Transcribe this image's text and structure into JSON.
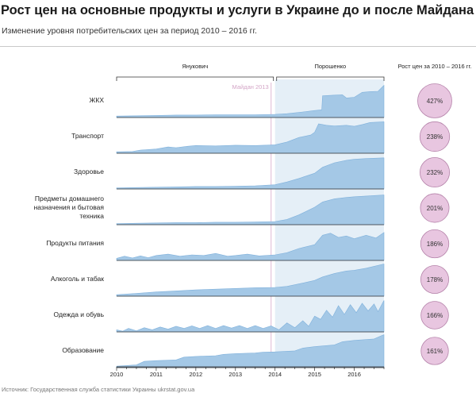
{
  "header": {
    "title": "Рост цен на основные продукты и услуги в Украине до и после Майдана",
    "subtitle": "Изменение уровня потребительских цен за период 2010 – 2016 гг."
  },
  "source": "Источник: Государственная служба статистики Украины ukrstat.gov.ua",
  "colors": {
    "area": "#a4c8e6",
    "area_stroke": "#7fb1dc",
    "shade": "#e5eff7",
    "bubble_fill": "#e8c6e0",
    "bubble_stroke": "#b583aa",
    "maidan_line": "#e0b9d4",
    "axis": "#333333"
  },
  "periods": [
    {
      "name": "Янукович",
      "from": 2010.0,
      "to": 2014.0
    },
    {
      "name": "Порошенко",
      "from": 2014.0,
      "to": 2016.75
    }
  ],
  "event": {
    "label": "Майдан 2013",
    "x": 2013.9
  },
  "growth_header": "Рост цен за 2010 – 2016 гг.",
  "chart_data": {
    "type": "area",
    "title": "Рост цен на основные продукты и услуги в Украине до и после Майдана",
    "subtitle": "Изменение уровня потребительских цен за период 2010 – 2016 гг.",
    "xlabel": "",
    "ylabel": "",
    "x_ticks": [
      "2010",
      "2011",
      "2012",
      "2013",
      "2014",
      "2015",
      "2016"
    ],
    "xlim": [
      2010,
      2016.75
    ],
    "ylim": [
      0,
      1
    ],
    "series": [
      {
        "name": "ЖКХ",
        "label_lines": [
          "ЖКХ"
        ],
        "growth_label": "427%",
        "growth": 427,
        "points": [
          [
            2010.0,
            0.04
          ],
          [
            2010.5,
            0.05
          ],
          [
            2011.0,
            0.06
          ],
          [
            2011.5,
            0.07
          ],
          [
            2012.0,
            0.07
          ],
          [
            2012.5,
            0.08
          ],
          [
            2013.0,
            0.08
          ],
          [
            2013.5,
            0.08
          ],
          [
            2014.0,
            0.09
          ],
          [
            2014.3,
            0.11
          ],
          [
            2014.7,
            0.16
          ],
          [
            2015.0,
            0.2
          ],
          [
            2015.18,
            0.22
          ],
          [
            2015.2,
            0.62
          ],
          [
            2015.5,
            0.64
          ],
          [
            2015.7,
            0.65
          ],
          [
            2015.8,
            0.56
          ],
          [
            2016.0,
            0.58
          ],
          [
            2016.2,
            0.72
          ],
          [
            2016.4,
            0.74
          ],
          [
            2016.6,
            0.75
          ],
          [
            2016.75,
            0.92
          ]
        ]
      },
      {
        "name": "Транспорт",
        "label_lines": [
          "Транспорт"
        ],
        "growth_label": "238%",
        "growth": 238,
        "points": [
          [
            2010.0,
            0.04
          ],
          [
            2010.4,
            0.05
          ],
          [
            2010.6,
            0.09
          ],
          [
            2011.0,
            0.12
          ],
          [
            2011.3,
            0.18
          ],
          [
            2011.5,
            0.16
          ],
          [
            2011.8,
            0.2
          ],
          [
            2012.0,
            0.22
          ],
          [
            2012.5,
            0.21
          ],
          [
            2013.0,
            0.23
          ],
          [
            2013.5,
            0.22
          ],
          [
            2014.0,
            0.24
          ],
          [
            2014.3,
            0.32
          ],
          [
            2014.6,
            0.45
          ],
          [
            2014.9,
            0.52
          ],
          [
            2015.0,
            0.6
          ],
          [
            2015.1,
            0.84
          ],
          [
            2015.3,
            0.8
          ],
          [
            2015.5,
            0.78
          ],
          [
            2015.8,
            0.8
          ],
          [
            2016.0,
            0.77
          ],
          [
            2016.2,
            0.82
          ],
          [
            2016.4,
            0.88
          ],
          [
            2016.75,
            0.9
          ]
        ]
      },
      {
        "name": "Здоровье",
        "label_lines": [
          "Здоровье"
        ],
        "growth_label": "232%",
        "growth": 232,
        "points": [
          [
            2010.0,
            0.03
          ],
          [
            2010.5,
            0.04
          ],
          [
            2011.0,
            0.05
          ],
          [
            2011.5,
            0.06
          ],
          [
            2012.0,
            0.07
          ],
          [
            2012.5,
            0.07
          ],
          [
            2013.0,
            0.08
          ],
          [
            2013.5,
            0.09
          ],
          [
            2014.0,
            0.12
          ],
          [
            2014.3,
            0.2
          ],
          [
            2014.6,
            0.3
          ],
          [
            2015.0,
            0.45
          ],
          [
            2015.2,
            0.62
          ],
          [
            2015.5,
            0.75
          ],
          [
            2015.8,
            0.82
          ],
          [
            2016.0,
            0.85
          ],
          [
            2016.3,
            0.87
          ],
          [
            2016.75,
            0.89
          ]
        ]
      },
      {
        "name": "Предметы домашнего назначения и бытовая техника",
        "label_lines": [
          "Предметы домашнего",
          "назначения и бытовая",
          "техника"
        ],
        "growth_label": "201%",
        "growth": 201,
        "points": [
          [
            2010.0,
            0.03
          ],
          [
            2010.5,
            0.04
          ],
          [
            2011.0,
            0.05
          ],
          [
            2011.5,
            0.06
          ],
          [
            2012.0,
            0.06
          ],
          [
            2012.5,
            0.07
          ],
          [
            2013.0,
            0.07
          ],
          [
            2013.5,
            0.08
          ],
          [
            2014.0,
            0.09
          ],
          [
            2014.3,
            0.15
          ],
          [
            2014.6,
            0.28
          ],
          [
            2015.0,
            0.5
          ],
          [
            2015.2,
            0.65
          ],
          [
            2015.5,
            0.74
          ],
          [
            2015.8,
            0.78
          ],
          [
            2016.0,
            0.8
          ],
          [
            2016.3,
            0.82
          ],
          [
            2016.75,
            0.85
          ]
        ]
      },
      {
        "name": "Продукты питания",
        "label_lines": [
          "Продукты питания"
        ],
        "growth_label": "186%",
        "growth": 186,
        "points": [
          [
            2010.0,
            0.06
          ],
          [
            2010.2,
            0.12
          ],
          [
            2010.4,
            0.07
          ],
          [
            2010.6,
            0.13
          ],
          [
            2010.8,
            0.08
          ],
          [
            2011.0,
            0.14
          ],
          [
            2011.3,
            0.18
          ],
          [
            2011.6,
            0.12
          ],
          [
            2011.9,
            0.16
          ],
          [
            2012.2,
            0.14
          ],
          [
            2012.5,
            0.2
          ],
          [
            2012.8,
            0.12
          ],
          [
            2013.0,
            0.14
          ],
          [
            2013.3,
            0.18
          ],
          [
            2013.6,
            0.13
          ],
          [
            2014.0,
            0.16
          ],
          [
            2014.3,
            0.22
          ],
          [
            2014.6,
            0.34
          ],
          [
            2015.0,
            0.45
          ],
          [
            2015.2,
            0.72
          ],
          [
            2015.4,
            0.78
          ],
          [
            2015.6,
            0.66
          ],
          [
            2015.8,
            0.7
          ],
          [
            2016.0,
            0.62
          ],
          [
            2016.3,
            0.72
          ],
          [
            2016.55,
            0.64
          ],
          [
            2016.75,
            0.8
          ]
        ]
      },
      {
        "name": "Алкоголь и табак",
        "label_lines": [
          "Алкоголь и табак"
        ],
        "growth_label": "178%",
        "growth": 178,
        "points": [
          [
            2010.0,
            0.04
          ],
          [
            2010.5,
            0.08
          ],
          [
            2011.0,
            0.12
          ],
          [
            2011.5,
            0.15
          ],
          [
            2012.0,
            0.18
          ],
          [
            2012.5,
            0.2
          ],
          [
            2013.0,
            0.22
          ],
          [
            2013.5,
            0.24
          ],
          [
            2014.0,
            0.25
          ],
          [
            2014.3,
            0.28
          ],
          [
            2014.6,
            0.35
          ],
          [
            2015.0,
            0.45
          ],
          [
            2015.2,
            0.55
          ],
          [
            2015.5,
            0.65
          ],
          [
            2015.8,
            0.72
          ],
          [
            2016.0,
            0.74
          ],
          [
            2016.3,
            0.8
          ],
          [
            2016.75,
            0.92
          ]
        ]
      },
      {
        "name": "Одежда и обувь",
        "label_lines": [
          "Одежда и обувь"
        ],
        "growth_label": "166%",
        "growth": 166,
        "points": [
          [
            2010.0,
            0.06
          ],
          [
            2010.15,
            0.02
          ],
          [
            2010.3,
            0.1
          ],
          [
            2010.5,
            0.03
          ],
          [
            2010.7,
            0.12
          ],
          [
            2010.9,
            0.06
          ],
          [
            2011.1,
            0.14
          ],
          [
            2011.3,
            0.08
          ],
          [
            2011.5,
            0.16
          ],
          [
            2011.7,
            0.1
          ],
          [
            2011.9,
            0.17
          ],
          [
            2012.1,
            0.1
          ],
          [
            2012.3,
            0.18
          ],
          [
            2012.5,
            0.1
          ],
          [
            2012.7,
            0.18
          ],
          [
            2012.9,
            0.11
          ],
          [
            2013.1,
            0.18
          ],
          [
            2013.3,
            0.1
          ],
          [
            2013.5,
            0.18
          ],
          [
            2013.7,
            0.1
          ],
          [
            2013.9,
            0.17
          ],
          [
            2014.1,
            0.06
          ],
          [
            2014.3,
            0.26
          ],
          [
            2014.5,
            0.12
          ],
          [
            2014.7,
            0.32
          ],
          [
            2014.85,
            0.16
          ],
          [
            2015.0,
            0.45
          ],
          [
            2015.15,
            0.36
          ],
          [
            2015.3,
            0.62
          ],
          [
            2015.45,
            0.42
          ],
          [
            2015.6,
            0.75
          ],
          [
            2015.75,
            0.5
          ],
          [
            2015.9,
            0.78
          ],
          [
            2016.05,
            0.55
          ],
          [
            2016.2,
            0.82
          ],
          [
            2016.35,
            0.6
          ],
          [
            2016.5,
            0.8
          ],
          [
            2016.6,
            0.58
          ],
          [
            2016.75,
            0.9
          ]
        ]
      },
      {
        "name": "Образование",
        "label_lines": [
          "Образование"
        ],
        "growth_label": "161%",
        "growth": 161,
        "points": [
          [
            2010.0,
            0.04
          ],
          [
            2010.5,
            0.08
          ],
          [
            2010.7,
            0.18
          ],
          [
            2011.0,
            0.2
          ],
          [
            2011.5,
            0.22
          ],
          [
            2011.7,
            0.3
          ],
          [
            2012.0,
            0.32
          ],
          [
            2012.5,
            0.34
          ],
          [
            2012.7,
            0.38
          ],
          [
            2013.0,
            0.4
          ],
          [
            2013.5,
            0.42
          ],
          [
            2013.7,
            0.44
          ],
          [
            2014.0,
            0.45
          ],
          [
            2014.5,
            0.48
          ],
          [
            2014.7,
            0.56
          ],
          [
            2015.0,
            0.6
          ],
          [
            2015.5,
            0.65
          ],
          [
            2015.7,
            0.74
          ],
          [
            2016.0,
            0.78
          ],
          [
            2016.5,
            0.82
          ],
          [
            2016.7,
            0.92
          ],
          [
            2016.75,
            0.94
          ]
        ]
      }
    ]
  }
}
